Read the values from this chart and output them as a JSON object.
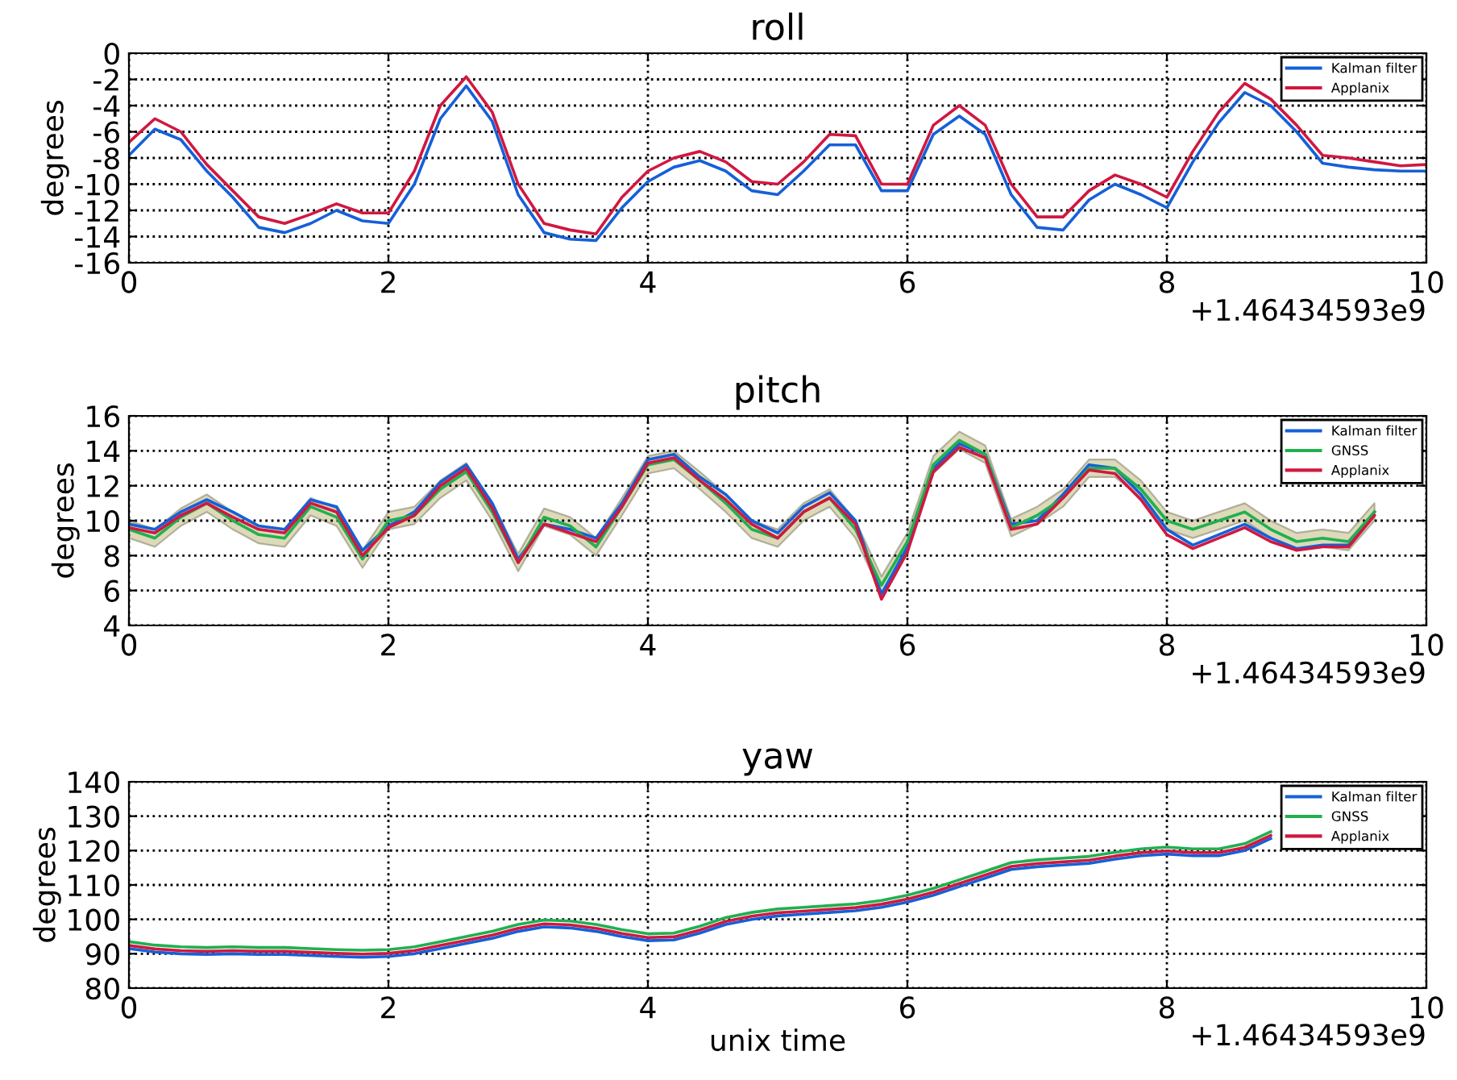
{
  "chart_data": [
    {
      "type": "line",
      "title": "roll",
      "ylabel": "degrees",
      "annotations": [
        "+1.46434593e9"
      ],
      "x": [
        0,
        0.2,
        0.4,
        0.6,
        0.8,
        1.0,
        1.2,
        1.4,
        1.6,
        1.8,
        2.0,
        2.2,
        2.4,
        2.6,
        2.8,
        3.0,
        3.2,
        3.4,
        3.6,
        3.8,
        4.0,
        4.2,
        4.4,
        4.6,
        4.8,
        5.0,
        5.2,
        5.4,
        5.6,
        5.8,
        6.0,
        6.2,
        6.4,
        6.6,
        6.8,
        7.0,
        7.2,
        7.4,
        7.6,
        7.8,
        8.0,
        8.2,
        8.4,
        8.6,
        8.8,
        9.0,
        9.2,
        9.4,
        9.6,
        9.8,
        10
      ],
      "series": [
        {
          "name": "Kalman filter",
          "color": "#1560d8",
          "values": [
            -7.8,
            -5.8,
            -6.6,
            -9,
            -11,
            -13.3,
            -13.7,
            -13,
            -12,
            -12.8,
            -13,
            -10,
            -5,
            -2.5,
            -5.2,
            -10.8,
            -13.7,
            -14.2,
            -14.3,
            -11.8,
            -9.8,
            -8.7,
            -8.2,
            -9,
            -10.5,
            -10.8,
            -9,
            -7,
            -7,
            -10.5,
            -10.5,
            -6.2,
            -4.8,
            -6.2,
            -10.8,
            -13.3,
            -13.5,
            -11.2,
            -10,
            -10.8,
            -11.8,
            -8.3,
            -5.3,
            -3,
            -4,
            -6,
            -8.4,
            -8.7,
            -8.9,
            -9,
            -9
          ]
        },
        {
          "name": "Applanix",
          "color": "#d01840",
          "values": [
            -6.8,
            -5,
            -6,
            -8.5,
            -10.5,
            -12.5,
            -13,
            -12.3,
            -11.5,
            -12.2,
            -12.2,
            -9,
            -4,
            -1.8,
            -4.5,
            -10,
            -13,
            -13.5,
            -13.8,
            -11,
            -9,
            -8,
            -7.5,
            -8.3,
            -9.8,
            -10,
            -8.3,
            -6.2,
            -6.3,
            -10,
            -10,
            -5.5,
            -4,
            -5.5,
            -10,
            -12.5,
            -12.5,
            -10.5,
            -9.3,
            -10,
            -11,
            -7.5,
            -4.5,
            -2.3,
            -3.5,
            -5.5,
            -7.8,
            -8,
            -8.3,
            -8.6,
            -8.5
          ]
        }
      ],
      "xlim": [
        0,
        10
      ],
      "xticks": [
        0,
        2,
        4,
        6,
        8,
        10
      ],
      "ylim": [
        -16,
        0
      ],
      "yticks": [
        -16,
        -14,
        -12,
        -10,
        -8,
        -6,
        -4,
        -2,
        0
      ],
      "grid": true,
      "legend": "top right"
    },
    {
      "type": "line",
      "title": "pitch",
      "ylabel": "degrees",
      "annotations": [
        "+1.46434593e9"
      ],
      "x": [
        0,
        0.2,
        0.4,
        0.6,
        0.8,
        1.0,
        1.2,
        1.4,
        1.6,
        1.8,
        2.0,
        2.2,
        2.4,
        2.6,
        2.8,
        3.0,
        3.2,
        3.4,
        3.6,
        3.8,
        4.0,
        4.2,
        4.4,
        4.6,
        4.8,
        5.0,
        5.2,
        5.4,
        5.6,
        5.8,
        6.0,
        6.2,
        6.4,
        6.6,
        6.8,
        7.0,
        7.2,
        7.4,
        7.6,
        7.8,
        8.0,
        8.2,
        8.4,
        8.6,
        8.8,
        9.0,
        9.2,
        9.4,
        9.6
      ],
      "series": [
        {
          "name": "Kalman filter",
          "color": "#1560d8",
          "values": [
            9.8,
            9.5,
            10.5,
            11.2,
            10.5,
            9.7,
            9.5,
            11.2,
            10.8,
            8.3,
            9.7,
            10.5,
            12.2,
            13.2,
            11.0,
            7.8,
            9.8,
            9.5,
            9.0,
            11.0,
            13.5,
            13.8,
            12.5,
            11.5,
            10.0,
            9.3,
            10.8,
            11.6,
            10.0,
            5.8,
            8.5,
            13.0,
            14.4,
            13.8,
            9.8,
            10.0,
            11.5,
            13.2,
            13.0,
            11.5,
            9.5,
            8.6,
            9.2,
            9.8,
            9.0,
            8.4,
            8.6,
            8.6,
            10.5
          ]
        },
        {
          "name": "GNSS",
          "color": "#20b050",
          "values": [
            9.5,
            9.0,
            10.2,
            11.0,
            10.0,
            9.2,
            9.0,
            10.8,
            10.2,
            7.8,
            10.0,
            10.3,
            11.8,
            12.8,
            10.5,
            7.6,
            10.2,
            9.7,
            8.5,
            10.8,
            13.2,
            13.5,
            12.3,
            11.0,
            9.5,
            9.0,
            10.5,
            11.3,
            9.5,
            6.3,
            8.8,
            13.2,
            14.6,
            13.8,
            9.6,
            10.3,
            11.3,
            13.0,
            13.0,
            11.8,
            10.0,
            9.5,
            10.0,
            10.5,
            9.5,
            8.8,
            9.0,
            8.8,
            10.5
          ],
          "lower": [
            9.0,
            8.5,
            9.7,
            10.5,
            9.5,
            8.7,
            8.5,
            10.3,
            9.7,
            7.3,
            9.5,
            9.8,
            11.3,
            12.3,
            10.0,
            7.1,
            9.7,
            9.2,
            8.0,
            10.3,
            12.7,
            13.0,
            11.8,
            10.5,
            9.0,
            8.5,
            10.0,
            10.8,
            9.0,
            5.8,
            8.3,
            12.7,
            14.1,
            13.3,
            9.1,
            9.8,
            10.8,
            12.5,
            12.5,
            11.3,
            9.5,
            9.0,
            9.5,
            10.0,
            9.0,
            8.3,
            8.5,
            8.3,
            10.0
          ],
          "upper": [
            10.0,
            9.5,
            10.7,
            11.5,
            10.5,
            9.7,
            9.5,
            11.3,
            10.7,
            8.3,
            10.5,
            10.8,
            12.3,
            13.3,
            11.0,
            8.1,
            10.7,
            10.2,
            9.0,
            11.3,
            13.7,
            14.0,
            12.8,
            11.5,
            10.0,
            9.5,
            11.0,
            11.8,
            10.0,
            6.8,
            9.3,
            13.7,
            15.1,
            14.3,
            10.1,
            10.8,
            11.8,
            13.5,
            13.5,
            12.3,
            10.5,
            10.0,
            10.5,
            11.0,
            10.0,
            9.3,
            9.5,
            9.3,
            11.0
          ]
        },
        {
          "name": "Applanix",
          "color": "#d01840",
          "values": [
            9.6,
            9.3,
            10.3,
            11.0,
            10.2,
            9.5,
            9.3,
            11.0,
            10.5,
            8.0,
            9.6,
            10.3,
            12.0,
            13.0,
            10.7,
            7.6,
            9.8,
            9.3,
            8.8,
            10.8,
            13.3,
            13.6,
            12.3,
            11.2,
            9.8,
            9.0,
            10.5,
            11.3,
            9.8,
            5.5,
            8.2,
            12.8,
            14.2,
            13.6,
            9.5,
            9.8,
            11.3,
            12.9,
            12.7,
            11.2,
            9.2,
            8.4,
            9.0,
            9.6,
            8.8,
            8.3,
            8.5,
            8.5,
            10.3
          ]
        }
      ],
      "xlim": [
        0,
        10
      ],
      "xticks": [
        0,
        2,
        4,
        6,
        8,
        10
      ],
      "ylim": [
        4,
        16
      ],
      "yticks": [
        4,
        6,
        8,
        10,
        12,
        14,
        16
      ],
      "grid": true,
      "legend": "top right"
    },
    {
      "type": "line",
      "title": "yaw",
      "xlabel": "unix time",
      "ylabel": "degrees",
      "annotations": [
        "+1.46434593e9"
      ],
      "x": [
        0,
        0.2,
        0.4,
        0.6,
        0.8,
        1.0,
        1.2,
        1.4,
        1.6,
        1.8,
        2.0,
        2.2,
        2.4,
        2.6,
        2.8,
        3.0,
        3.2,
        3.4,
        3.6,
        3.8,
        4.0,
        4.2,
        4.4,
        4.6,
        4.8,
        5.0,
        5.2,
        5.4,
        5.6,
        5.8,
        6.0,
        6.2,
        6.4,
        6.6,
        6.8,
        7.0,
        7.2,
        7.4,
        7.6,
        7.8,
        8.0,
        8.2,
        8.4,
        8.6,
        8.8
      ],
      "series": [
        {
          "name": "Kalman filter",
          "color": "#1560d8",
          "values": [
            91.5,
            90.5,
            90,
            89.8,
            90,
            89.8,
            89.8,
            89.5,
            89.2,
            89,
            89.2,
            90,
            91.5,
            93,
            94.5,
            96.5,
            97.8,
            97.5,
            96.5,
            95,
            93.8,
            94,
            96,
            98.5,
            100,
            101,
            101.5,
            102,
            102.5,
            103.5,
            105,
            107,
            109.5,
            112,
            114.5,
            115.3,
            115.8,
            116.3,
            117.5,
            118.5,
            119,
            118.5,
            118.5,
            120,
            123.5
          ]
        },
        {
          "name": "GNSS",
          "color": "#20b050",
          "values": [
            93.5,
            92.5,
            92,
            91.8,
            92,
            91.8,
            91.8,
            91.5,
            91.2,
            91,
            91.2,
            92,
            93.5,
            95,
            96.5,
            98.5,
            99.8,
            99.5,
            98.5,
            97,
            95.8,
            96,
            98,
            100.5,
            102,
            103,
            103.5,
            104,
            104.5,
            105.5,
            107,
            109,
            111.5,
            114,
            116.5,
            117.3,
            117.8,
            118.3,
            119.5,
            120.5,
            121,
            120.5,
            120.5,
            122,
            125.5
          ]
        },
        {
          "name": "Applanix",
          "color": "#d01840",
          "values": [
            92.4,
            91.4,
            90.9,
            90.7,
            90.9,
            90.7,
            90.7,
            90.4,
            90.1,
            89.9,
            90.1,
            90.9,
            92.4,
            93.9,
            95.4,
            97.4,
            98.7,
            98.4,
            97.4,
            95.9,
            94.7,
            94.9,
            96.9,
            99.4,
            100.9,
            101.9,
            102.4,
            102.9,
            103.4,
            104.4,
            105.9,
            107.9,
            110.4,
            112.9,
            115.4,
            116.2,
            116.7,
            117.2,
            118.4,
            119.4,
            119.9,
            119.4,
            119.4,
            120.9,
            124.4
          ]
        }
      ],
      "xlim": [
        0,
        10
      ],
      "xticks": [
        0,
        2,
        4,
        6,
        8,
        10
      ],
      "ylim": [
        80,
        140
      ],
      "yticks": [
        80,
        90,
        100,
        110,
        120,
        130,
        140
      ],
      "grid": true,
      "legend": "top right"
    }
  ]
}
